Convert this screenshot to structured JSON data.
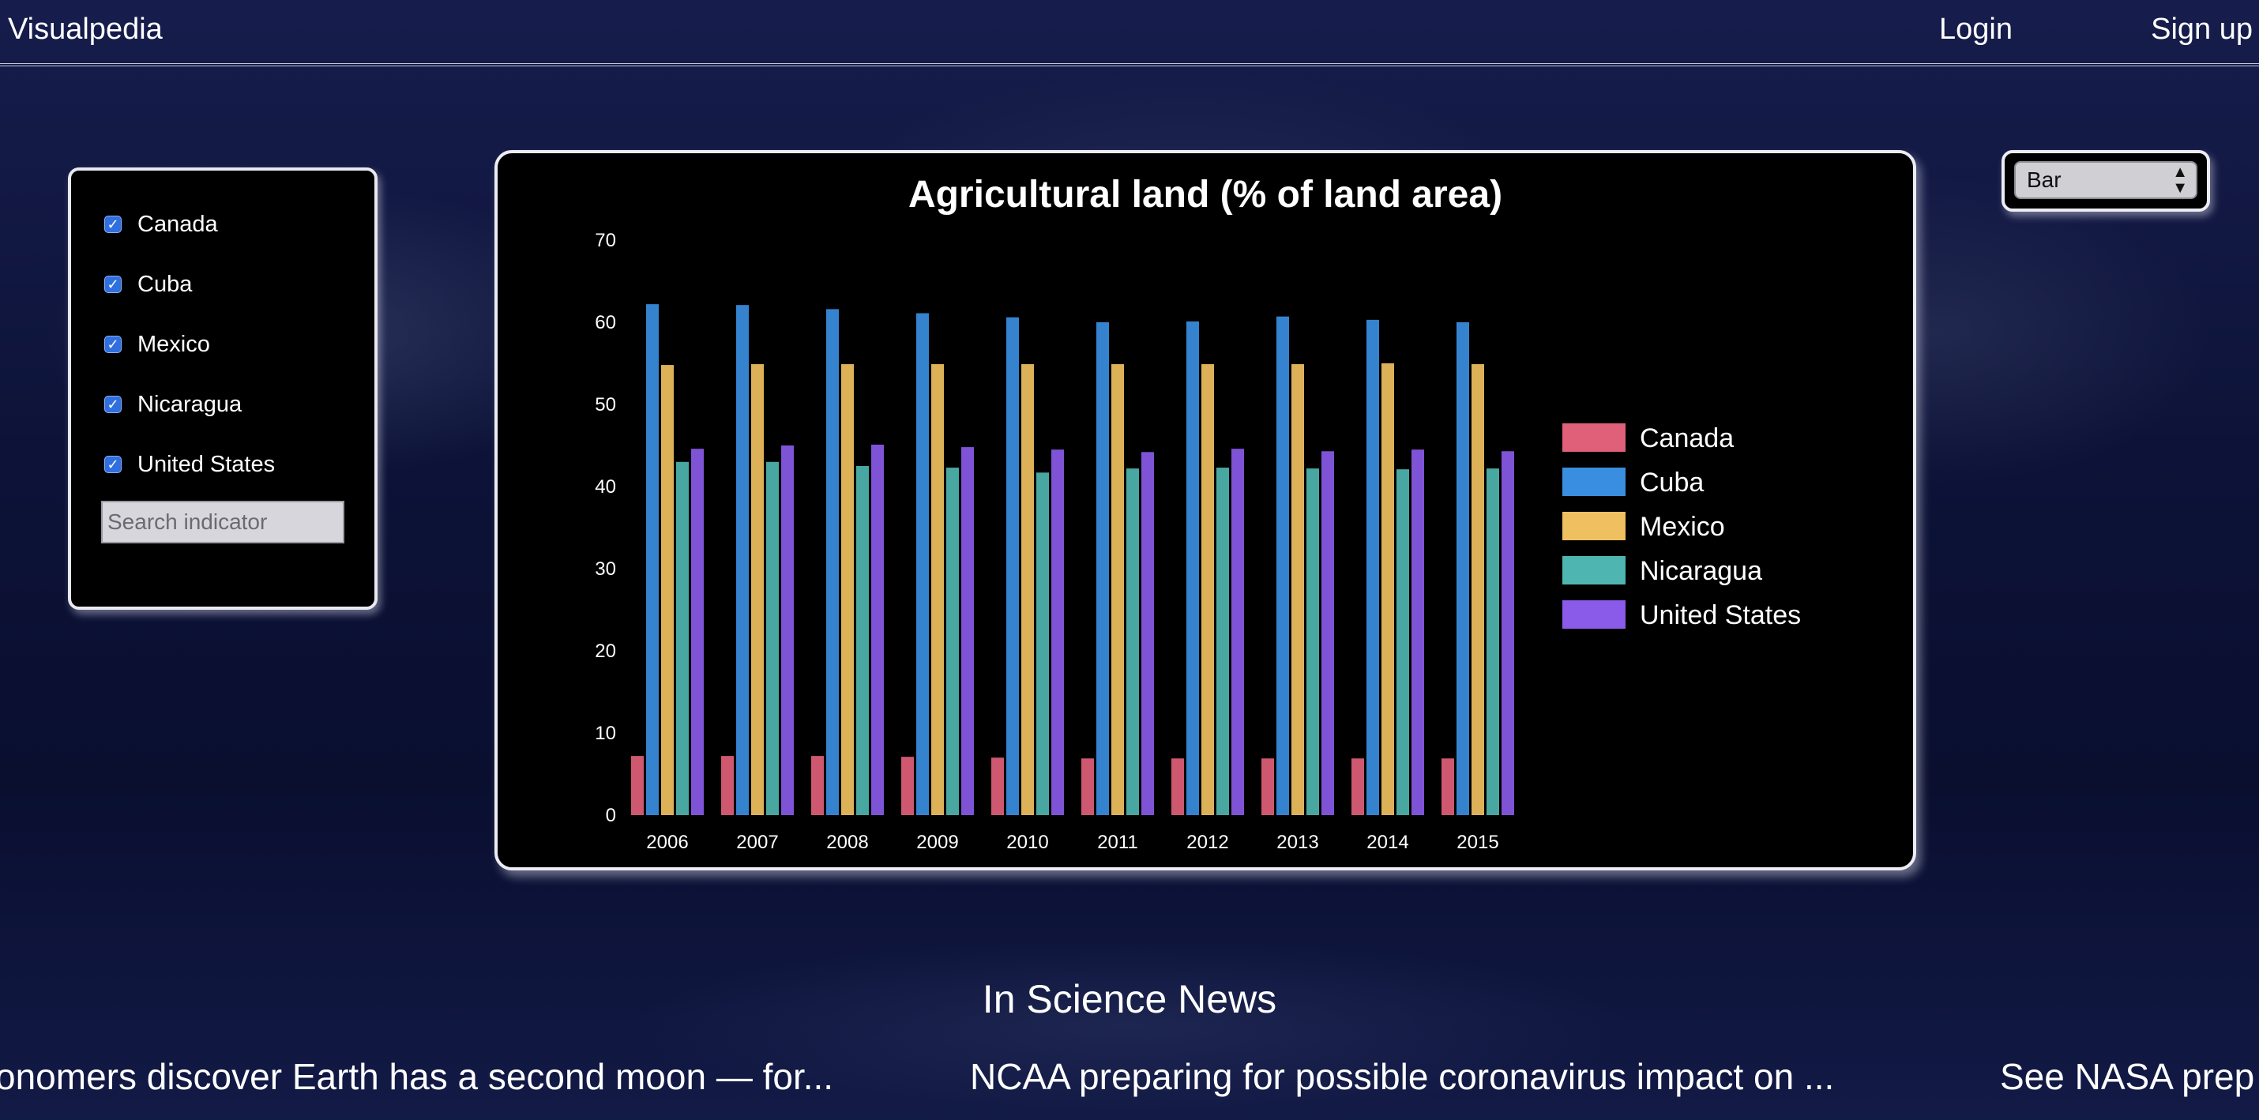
{
  "header": {
    "brand": "Visualpedia",
    "login": "Login",
    "signup": "Sign up"
  },
  "filter": {
    "countries": [
      {
        "label": "Canada",
        "checked": true
      },
      {
        "label": "Cuba",
        "checked": true
      },
      {
        "label": "Mexico",
        "checked": true
      },
      {
        "label": "Nicaragua",
        "checked": true
      },
      {
        "label": "United States",
        "checked": true
      }
    ],
    "search_placeholder": "Search indicator"
  },
  "chart_type_select": {
    "selected": "Bar"
  },
  "chart_data": {
    "type": "bar",
    "title": "Agricultural land (% of land area)",
    "xlabel": "",
    "ylabel": "",
    "ylim": [
      0,
      70
    ],
    "yticks": [
      0,
      10,
      20,
      30,
      40,
      50,
      60,
      70
    ],
    "grid": false,
    "legend_position": "right",
    "categories": [
      "2006",
      "2007",
      "2008",
      "2009",
      "2010",
      "2011",
      "2012",
      "2013",
      "2014",
      "2015"
    ],
    "series": [
      {
        "name": "Canada",
        "color": "#e0607a",
        "values": [
          7.2,
          7.2,
          7.2,
          7.1,
          7.0,
          6.9,
          6.9,
          6.9,
          6.9,
          6.9
        ]
      },
      {
        "name": "Cuba",
        "color": "#3a8ee0",
        "values": [
          62.2,
          62.1,
          61.6,
          61.1,
          60.6,
          60.0,
          60.1,
          60.7,
          60.3,
          60.0
        ]
      },
      {
        "name": "Mexico",
        "color": "#efc060",
        "values": [
          54.8,
          54.9,
          54.9,
          54.9,
          54.9,
          54.9,
          54.9,
          54.9,
          55.0,
          54.9
        ]
      },
      {
        "name": "Nicaragua",
        "color": "#4fb5b0",
        "values": [
          43.0,
          43.0,
          42.5,
          42.3,
          41.7,
          42.2,
          42.3,
          42.2,
          42.1,
          42.2
        ]
      },
      {
        "name": "United States",
        "color": "#8a5ae8",
        "values": [
          44.6,
          45.0,
          45.1,
          44.8,
          44.5,
          44.2,
          44.6,
          44.3,
          44.5,
          44.3
        ]
      }
    ]
  },
  "news": {
    "heading": "In Science News",
    "items": [
      "onomers discover Earth has a second moon — for...",
      "NCAA preparing for possible coronavirus impact on ...",
      "See NASA prep"
    ]
  }
}
